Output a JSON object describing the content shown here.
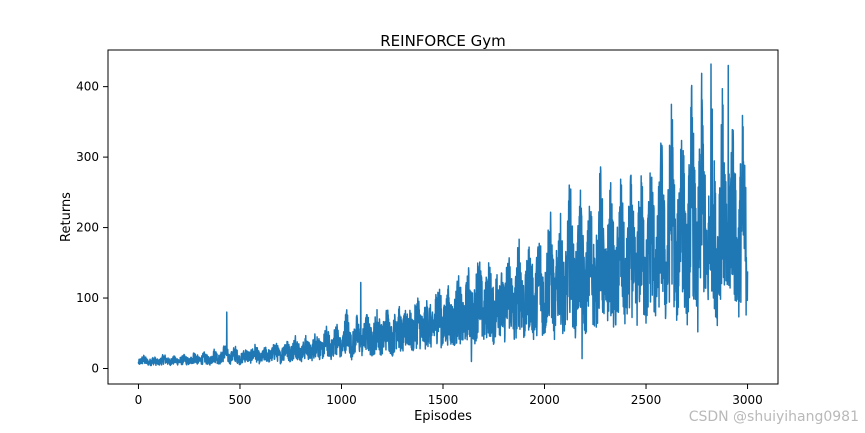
{
  "chart_data": {
    "type": "line",
    "title": "REINFORCE Gym",
    "xlabel": "Episodes",
    "ylabel": "Returns",
    "xlim": [
      -150,
      3150
    ],
    "ylim": [
      -22,
      452
    ],
    "x_ticks": [
      0,
      500,
      1000,
      1500,
      2000,
      2500,
      3000
    ],
    "y_ticks": [
      0,
      100,
      200,
      300,
      400
    ],
    "grid": false,
    "legend": "none",
    "series": [
      {
        "color": "#1f77b4",
        "x_start": 0,
        "x_step": 25,
        "values": [
          12,
          20,
          12,
          18,
          12,
          22,
          14,
          18,
          15,
          20,
          14,
          25,
          16,
          24,
          15,
          30,
          18,
          38,
          20,
          34,
          18,
          30,
          24,
          36,
          20,
          32,
          26,
          40,
          24,
          46,
          30,
          52,
          30,
          48,
          32,
          58,
          36,
          62,
          40,
          70,
          38,
          90,
          44,
          78,
          50,
          82,
          54,
          88,
          60,
          92,
          58,
          104,
          66,
          98,
          70,
          112,
          74,
          106,
          78,
          135,
          84,
          120,
          90,
          138,
          92,
          148,
          100,
          175,
          104,
          162,
          110,
          170,
          116,
          180,
          108,
          200,
          118,
          186,
          124,
          210,
          126,
          248,
          130,
          236,
          138,
          280,
          144,
          262,
          150,
          258,
          156,
          300,
          160,
          272,
          158,
          286,
          164,
          282,
          170,
          296,
          178,
          320,
          182,
          348,
          176,
          410,
          186,
          402,
          190,
          418,
          200,
          428,
          196,
          380,
          206,
          412,
          210,
          396,
          204,
          366,
          214
        ]
      }
    ],
    "events": [
      {
        "x": 435,
        "y": 80
      },
      {
        "x": 1095,
        "y": 122
      },
      {
        "x": 1640,
        "y": 10
      },
      {
        "x": 2185,
        "y": 14
      },
      {
        "x": 2755,
        "y": 52
      },
      {
        "x": 2820,
        "y": 432
      },
      {
        "x": 2905,
        "y": 430
      }
    ]
  },
  "watermark": "CSDN @shuiyihang0981"
}
